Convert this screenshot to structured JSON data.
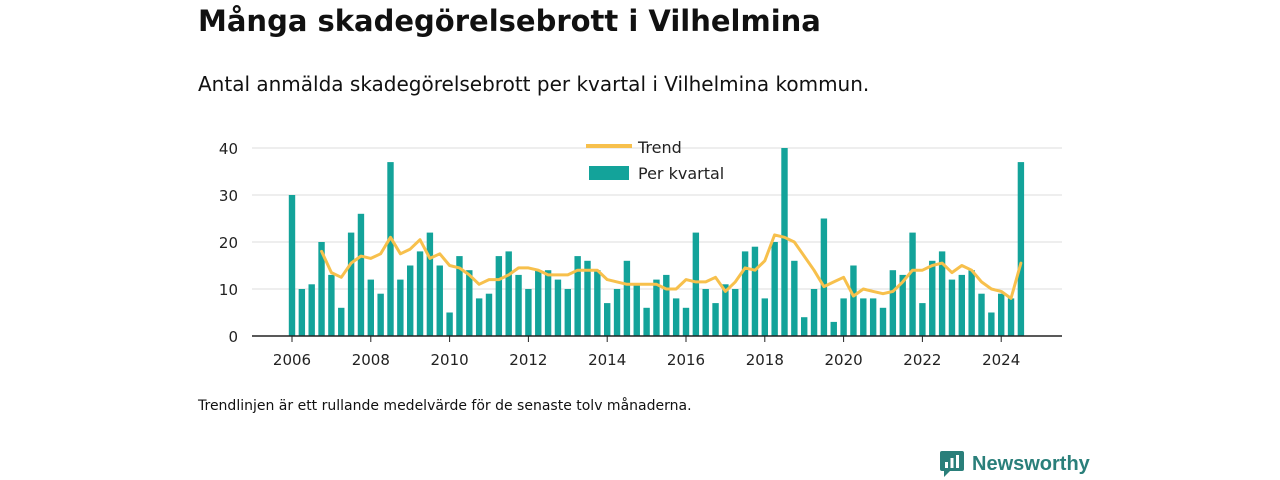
{
  "title": "Många skadegörelsebrott i Vilhelmina",
  "subtitle": "Antal anmälda skadegörelsebrott per kvartal i Vilhelmina kommun.",
  "footnote": "Trendlinjen är ett rullande medelvärde för de senaste tolv månaderna.",
  "brand": {
    "name": "Newsworthy",
    "icon": "newsworthy-logo-icon",
    "color": "#2a7f7a"
  },
  "colors": {
    "bar": "#13a39a",
    "trend": "#f7c04c",
    "grid": "#dddddd",
    "axis": "#222222"
  },
  "chart_data": {
    "type": "bar",
    "x_start": "2006-Q1",
    "x_tick_labels": [
      "2006",
      "2008",
      "2010",
      "2012",
      "2014",
      "2016",
      "2018",
      "2020",
      "2022",
      "2024"
    ],
    "y_ticks": [
      0,
      10,
      20,
      30,
      40
    ],
    "ylim": [
      0,
      40
    ],
    "legend_position": "top",
    "grid": "horizontal",
    "series": [
      {
        "name": "Per kvartal",
        "type": "bar",
        "values": [
          30,
          10,
          11,
          20,
          13,
          6,
          22,
          26,
          12,
          9,
          37,
          12,
          15,
          18,
          22,
          15,
          5,
          17,
          14,
          8,
          9,
          17,
          18,
          13,
          10,
          14,
          14,
          12,
          10,
          17,
          16,
          14,
          7,
          10,
          16,
          11,
          6,
          12,
          13,
          8,
          6,
          22,
          10,
          7,
          11,
          10,
          18,
          19,
          8,
          20,
          40,
          16,
          4,
          10,
          25,
          3,
          8,
          15,
          8,
          8,
          6,
          14,
          13,
          22,
          7,
          16,
          18,
          12,
          13,
          14,
          9,
          5,
          9,
          8,
          37
        ]
      },
      {
        "name": "Trend",
        "type": "line",
        "start_index": 3,
        "values": [
          18,
          13.5,
          12.5,
          15.5,
          17,
          16.5,
          17.5,
          21,
          17.5,
          18.5,
          20.5,
          16.5,
          17.5,
          15,
          14.5,
          13,
          11,
          12,
          12,
          13,
          14.5,
          14.5,
          14,
          13,
          13,
          13,
          14,
          14,
          14,
          12,
          11.5,
          11,
          11,
          11,
          11,
          10,
          10,
          12,
          11.5,
          11.5,
          12.5,
          9.5,
          11.5,
          14.5,
          14,
          16,
          21.5,
          21,
          20,
          17,
          14,
          10.5,
          11.5,
          12.5,
          8.5,
          10,
          9.5,
          9,
          9.5,
          11.5,
          14,
          14,
          15,
          15.5,
          13.5,
          15,
          14,
          11.5,
          10,
          9.5,
          8,
          15.5
        ]
      }
    ]
  }
}
